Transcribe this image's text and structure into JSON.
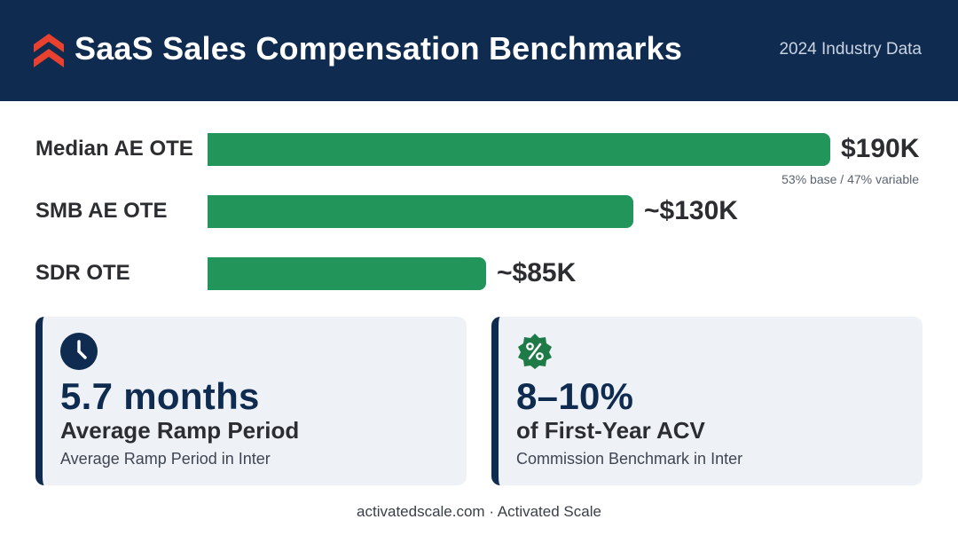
{
  "header": {
    "title": "SaaS Sales Compensation Benchmarks",
    "subtitle": "2024 Industry Data"
  },
  "chart_data": {
    "type": "bar",
    "orientation": "horizontal",
    "categories": [
      "Median AE OTE",
      "SMB AE OTE",
      "SDR OTE"
    ],
    "values": [
      190000,
      130000,
      85000
    ],
    "value_labels": [
      "$190K",
      "~$130K",
      "~$85K"
    ],
    "annotations": [
      {
        "category": "Median AE OTE",
        "text": "53% base / 47% variable"
      }
    ],
    "bar_color": "#22955a",
    "grid": false,
    "legend": "none"
  },
  "cards": [
    {
      "icon": "clock-icon",
      "value": "5.7 months",
      "heading": "Average Ramp Period",
      "subtext": "Average Ramp Period in Inter",
      "accent": "#0f2b50"
    },
    {
      "icon": "percent-badge-icon",
      "value": "8–10%",
      "heading": "of First-Year ACV",
      "subtext": "Commission Benchmark in Inter",
      "accent": "#1e7a46"
    }
  ],
  "footer": "activatedscale.com · Activated Scale",
  "colors": {
    "header_bg": "#0f2b50",
    "logo": "#e8412f",
    "bar": "#22955a",
    "card_bg": "#eef2f7"
  }
}
